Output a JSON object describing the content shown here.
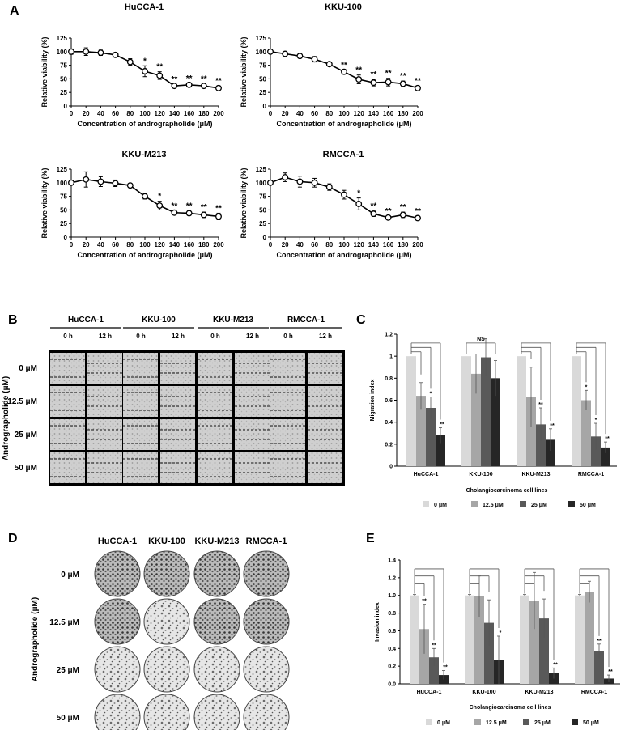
{
  "panels": {
    "A": "A",
    "B": "B",
    "C": "C",
    "D": "D",
    "E": "E"
  },
  "colors": {
    "c0": "#d9d9d9",
    "c1": "#a6a6a6",
    "c2": "#595959",
    "c3": "#262626"
  },
  "chart_data": [
    {
      "id": "A1",
      "type": "line",
      "title": "HuCCA-1",
      "xlabel": "Concentration of andrographolide (μM)",
      "ylabel": "Relative viability (%)",
      "x": [
        0,
        20,
        40,
        60,
        80,
        100,
        120,
        140,
        160,
        180,
        200
      ],
      "y": [
        100,
        100,
        98,
        94,
        81,
        64,
        56,
        37,
        39,
        37,
        33
      ],
      "err": [
        5,
        7,
        5,
        4,
        6,
        10,
        7,
        3,
        3,
        4,
        4
      ],
      "sig": [
        "",
        "",
        "",
        "",
        "",
        "*",
        "**",
        "**",
        "**",
        "**",
        "**"
      ],
      "xlim": [
        0,
        200
      ],
      "ylim": [
        0,
        125
      ],
      "yticks": [
        0,
        25,
        50,
        75,
        100,
        125
      ],
      "xticks": [
        0,
        20,
        40,
        60,
        80,
        100,
        120,
        140,
        160,
        180,
        200
      ]
    },
    {
      "id": "A2",
      "type": "line",
      "title": "KKU-100",
      "xlabel": "Concentration of andrographolide (μM)",
      "ylabel": "Relative viability (%)",
      "x": [
        0,
        20,
        40,
        60,
        80,
        100,
        120,
        140,
        160,
        180,
        200
      ],
      "y": [
        100,
        96,
        92,
        86,
        77,
        63,
        49,
        43,
        44,
        41,
        33
      ],
      "err": [
        2,
        2,
        3,
        5,
        3,
        3,
        8,
        6,
        7,
        5,
        4
      ],
      "sig": [
        "",
        "",
        "",
        "",
        "",
        "**",
        "**",
        "**",
        "**",
        "**",
        "**"
      ],
      "xlim": [
        0,
        200
      ],
      "ylim": [
        0,
        125
      ],
      "yticks": [
        0,
        25,
        50,
        75,
        100,
        125
      ],
      "xticks": [
        0,
        20,
        40,
        60,
        80,
        100,
        120,
        140,
        160,
        180,
        200
      ]
    },
    {
      "id": "A3",
      "type": "line",
      "title": "KKU-M213",
      "xlabel": "Concentration of andrographolide (μM)",
      "ylabel": "Relative viability (%)",
      "x": [
        0,
        20,
        40,
        60,
        80,
        100,
        120,
        140,
        160,
        180,
        200
      ],
      "y": [
        100,
        106,
        102,
        99,
        95,
        75,
        58,
        45,
        44,
        41,
        38
      ],
      "err": [
        3,
        14,
        9,
        6,
        3,
        5,
        8,
        3,
        4,
        5,
        6
      ],
      "sig": [
        "",
        "",
        "",
        "",
        "",
        "",
        "*",
        "**",
        "**",
        "**",
        "**"
      ],
      "xlim": [
        0,
        200
      ],
      "ylim": [
        0,
        125
      ],
      "yticks": [
        0,
        25,
        50,
        75,
        100,
        125
      ],
      "xticks": [
        0,
        20,
        40,
        60,
        80,
        100,
        120,
        140,
        160,
        180,
        200
      ]
    },
    {
      "id": "A4",
      "type": "line",
      "title": "RMCCA-1",
      "xlabel": "Concentration of andrographolide (μM)",
      "ylabel": "Relative viability (%)",
      "x": [
        0,
        20,
        40,
        60,
        80,
        100,
        120,
        140,
        160,
        180,
        200
      ],
      "y": [
        100,
        110,
        102,
        100,
        92,
        78,
        61,
        43,
        36,
        41,
        35
      ],
      "err": [
        3,
        8,
        10,
        8,
        6,
        8,
        11,
        5,
        3,
        5,
        4
      ],
      "sig": [
        "",
        "",
        "",
        "",
        "",
        "",
        "*",
        "**",
        "**",
        "**",
        "**"
      ],
      "xlim": [
        0,
        200
      ],
      "ylim": [
        0,
        125
      ],
      "yticks": [
        0,
        25,
        50,
        75,
        100,
        125
      ],
      "xticks": [
        0,
        20,
        40,
        60,
        80,
        100,
        120,
        140,
        160,
        180,
        200
      ]
    },
    {
      "id": "C",
      "type": "bar",
      "ylabel": "Migration index",
      "xlabel": "Cholangiocarcinoma cell lines",
      "categories": [
        "HuCCA-1",
        "KKU-100",
        "KKU-M213",
        "RMCCA-1"
      ],
      "series": [
        {
          "name": "0 μM",
          "values": [
            1,
            1,
            1,
            1
          ],
          "err": [
            0,
            0,
            0,
            0
          ]
        },
        {
          "name": "12.5 μM",
          "values": [
            0.64,
            0.84,
            0.63,
            0.6
          ],
          "err": [
            0.12,
            0.18,
            0.27,
            0.09
          ]
        },
        {
          "name": "25 μM",
          "values": [
            0.53,
            0.99,
            0.38,
            0.27
          ],
          "err": [
            0.1,
            0.17,
            0.15,
            0.12
          ]
        },
        {
          "name": "50 μM",
          "values": [
            0.28,
            0.8,
            0.24,
            0.17
          ],
          "err": [
            0.07,
            0.16,
            0.1,
            0.05
          ]
        }
      ],
      "sig": [
        [
          "",
          "",
          "*",
          "**"
        ],
        [
          "",
          "",
          "",
          ""
        ],
        [
          "",
          "",
          "**",
          "**"
        ],
        [
          "",
          "*",
          "*",
          "**"
        ]
      ],
      "ns_label": "NS",
      "ylim": [
        0,
        1.2
      ],
      "yticks": [
        0,
        0.2,
        0.4,
        0.6,
        0.8,
        1,
        1.2
      ],
      "ytick_labels": [
        "0",
        "0.2",
        "0.4",
        "0.6",
        "0.8",
        "1",
        "1.2"
      ],
      "legend": [
        "0 μM",
        "12.5 μM",
        "25 μM",
        "50 μM"
      ]
    },
    {
      "id": "E",
      "type": "bar",
      "ylabel": "Invasion index",
      "xlabel": "Cholangiocarcinoma cell lines",
      "categories": [
        "HuCCA-1",
        "KKU-100",
        "KKU-M213",
        "RMCCA-1"
      ],
      "series": [
        {
          "name": "0 μM",
          "values": [
            1,
            1,
            1,
            1
          ],
          "err": [
            0.01,
            0.01,
            0.01,
            0.01
          ]
        },
        {
          "name": "12.5 μM",
          "values": [
            0.62,
            0.99,
            0.94,
            1.04
          ],
          "err": [
            0.28,
            0.23,
            0.32,
            0.12
          ]
        },
        {
          "name": "25 μM",
          "values": [
            0.3,
            0.69,
            0.74,
            0.37
          ],
          "err": [
            0.1,
            0.26,
            0.22,
            0.08
          ]
        },
        {
          "name": "50 μM",
          "values": [
            0.1,
            0.27,
            0.12,
            0.06
          ],
          "err": [
            0.05,
            0.27,
            0.06,
            0.04
          ]
        }
      ],
      "sig": [
        [
          "",
          "**",
          "**",
          "**"
        ],
        [
          "",
          "",
          "",
          "*"
        ],
        [
          "",
          "",
          "",
          "**"
        ],
        [
          "",
          "",
          "**",
          "**"
        ]
      ],
      "ylim": [
        0,
        1.4
      ],
      "yticks": [
        0,
        0.2,
        0.4,
        0.6,
        0.8,
        1,
        1.2,
        1.4
      ],
      "ytick_labels": [
        "0.0",
        "0.2",
        "0.4",
        "0.6",
        "0.8",
        "1.0",
        "1.2",
        "1.4"
      ],
      "legend": [
        "0 μM",
        "12.5 μM",
        "25 μM",
        "50 μM"
      ]
    }
  ],
  "panelB": {
    "cells": [
      "HuCCA-1",
      "KKU-100",
      "KKU-M213",
      "RMCCA-1"
    ],
    "times": [
      "0 h",
      "12 h"
    ],
    "rows": [
      "0 μM",
      "12.5 μM",
      "25 μM",
      "50 μM"
    ],
    "side_label": "Andrographolide (μM)"
  },
  "panelD": {
    "cells": [
      "HuCCA-1",
      "KKU-100",
      "KKU-M213",
      "RMCCA-1"
    ],
    "rows": [
      "0 μM",
      "12.5 μM",
      "25 μM",
      "50 μM"
    ],
    "side_label": "Andrographolide (μM)"
  }
}
